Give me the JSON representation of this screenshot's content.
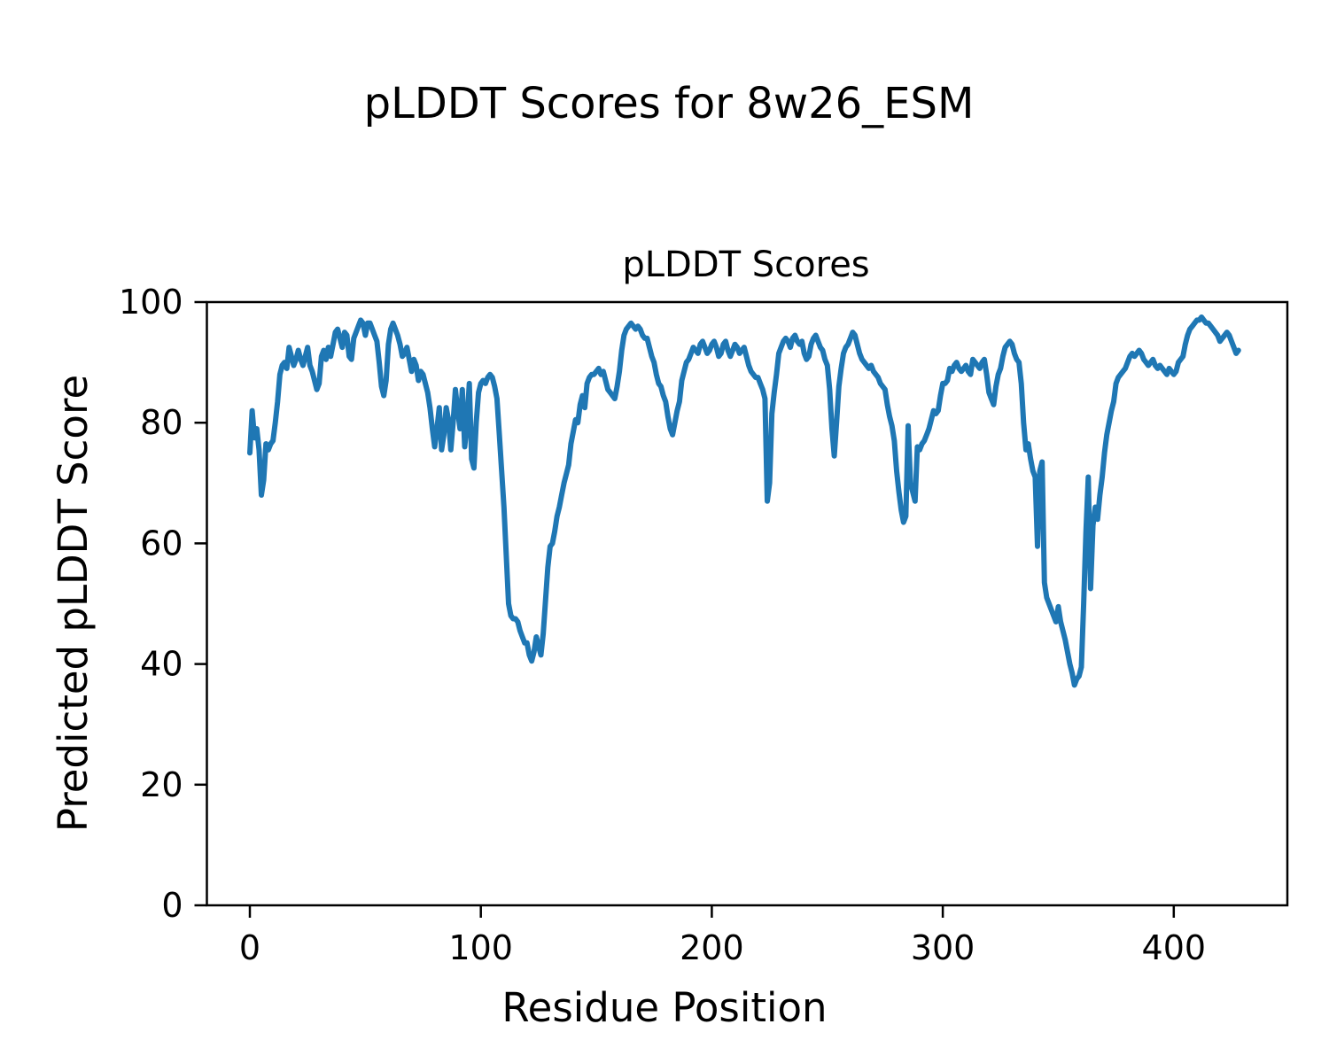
{
  "figure_title": "pLDDT Scores for 8w26_ESM",
  "chart_data": {
    "type": "line",
    "title": "pLDDT Scores",
    "xlabel": "Residue Position",
    "ylabel": "Predicted pLDDT Score",
    "x_ticks": [
      0,
      100,
      200,
      300,
      400
    ],
    "y_ticks": [
      0,
      20,
      40,
      60,
      80,
      100
    ],
    "ylim": [
      0,
      100
    ],
    "xlim": [
      -19,
      449
    ],
    "grid": false,
    "legend": null,
    "line_color": "#1f77b4",
    "axis_color": "#000000",
    "series": [
      {
        "name": "pLDDT",
        "x_start": 0,
        "x_step": 1,
        "values": [
          75,
          82,
          77.5,
          79,
          75.5,
          68,
          70.5,
          76.5,
          75.5,
          76.5,
          77,
          80,
          83.5,
          88,
          89.5,
          90,
          89,
          92.5,
          91,
          89.5,
          90.5,
          92,
          90.5,
          89.5,
          91,
          92.5,
          89.5,
          88.5,
          87,
          85.5,
          86.5,
          91,
          92,
          90.5,
          92.5,
          91,
          93,
          95,
          95.5,
          94,
          92.5,
          95,
          94.5,
          91,
          90.5,
          94,
          95,
          96,
          97,
          96.5,
          94.5,
          96.5,
          96.5,
          95.5,
          94.5,
          93.5,
          90,
          86,
          84.5,
          87,
          93,
          95.5,
          96.5,
          95.5,
          94.5,
          93,
          91,
          91.5,
          92.5,
          90.5,
          88.5,
          90.5,
          89.5,
          87,
          88.5,
          88,
          86.5,
          85,
          82.5,
          79,
          76,
          79,
          82.5,
          75.5,
          78,
          82.5,
          80.5,
          75.5,
          80,
          85.5,
          82,
          79,
          85.5,
          76,
          80,
          86.5,
          74,
          72.5,
          80,
          85,
          86.5,
          87,
          86.5,
          87.5,
          88,
          87.5,
          86,
          84,
          78,
          72,
          66,
          58,
          50,
          48,
          47.5,
          47.5,
          47,
          45.5,
          44.5,
          43.5,
          43.5,
          41.5,
          40.5,
          42,
          44.5,
          43,
          41.5,
          45,
          50.5,
          56,
          59.5,
          60,
          62,
          64.5,
          66,
          68,
          70,
          71.5,
          73,
          76.5,
          78.5,
          80.5,
          80,
          83,
          84.5,
          82.5,
          86.5,
          87.5,
          88,
          88,
          88.5,
          89,
          88,
          88.5,
          87,
          85.5,
          85,
          84.5,
          84,
          86,
          88.5,
          92,
          94.5,
          95.5,
          96,
          96.5,
          96,
          95.5,
          96,
          95.5,
          94.5,
          94,
          94,
          92.5,
          91,
          90,
          88,
          86.5,
          86,
          84.5,
          83.5,
          81,
          79,
          78,
          80,
          82,
          83.5,
          87,
          88.5,
          90,
          90.5,
          91.5,
          92.5,
          92,
          91.5,
          93,
          93.5,
          92.5,
          91.5,
          92,
          93,
          93.5,
          92.5,
          91,
          91.5,
          93,
          93.5,
          92,
          91,
          92,
          93,
          92.5,
          91.5,
          92,
          92.5,
          91,
          89.5,
          88.5,
          88,
          87.5,
          87.5,
          86.5,
          85.5,
          84,
          67,
          70,
          81.5,
          85,
          88,
          91.5,
          92.5,
          93.5,
          94,
          93.5,
          92.5,
          94,
          94.5,
          93.5,
          93,
          93.5,
          91.5,
          90.5,
          91,
          93,
          94,
          94.5,
          93.5,
          92.5,
          92,
          90.5,
          89.5,
          85.5,
          79,
          74.5,
          80,
          86,
          89,
          91.5,
          92.5,
          93,
          94,
          95,
          94.5,
          93,
          91.5,
          90.5,
          90,
          89.5,
          89,
          89.5,
          88.5,
          88,
          87.5,
          86.5,
          86,
          85.5,
          83,
          81,
          79.5,
          77,
          72,
          68.5,
          65.5,
          63.5,
          64.5,
          79.5,
          70,
          68.5,
          67,
          76,
          75.5,
          76.5,
          77,
          78,
          79,
          80.5,
          82,
          81.5,
          82,
          84.5,
          86.5,
          86.5,
          87,
          89,
          88.5,
          89.5,
          90,
          89,
          88.5,
          89,
          89.5,
          88.5,
          88,
          90.5,
          90,
          89.5,
          89,
          90,
          90.5,
          88,
          85,
          84,
          83,
          86,
          88,
          89,
          91,
          92.5,
          93,
          93.5,
          93,
          91.5,
          90.5,
          90,
          86.5,
          80,
          75.5,
          76.5,
          74,
          72,
          71,
          59.5,
          72,
          73.5,
          53.5,
          51,
          50,
          49,
          48,
          47,
          49.5,
          47,
          45.5,
          44,
          42,
          40,
          38.5,
          36.5,
          37.5,
          38,
          39.5,
          50,
          62,
          71,
          52.5,
          63,
          66,
          64,
          68,
          71,
          75,
          78,
          80,
          82,
          83.5,
          86.5,
          87.5,
          88,
          88.5,
          89,
          90,
          91,
          91.5,
          91,
          91.5,
          92,
          91.5,
          90.5,
          90,
          89.5,
          90,
          90.5,
          89.5,
          89,
          89.5,
          89,
          88.5,
          88,
          89,
          88.5,
          88,
          88.5,
          90,
          90.5,
          91,
          93,
          94.5,
          95.5,
          96,
          96.5,
          97,
          97,
          97.5,
          97,
          96.5,
          96.5,
          96,
          95.5,
          95,
          94.5,
          93.5,
          94,
          94.5,
          95,
          94.5,
          93.5,
          92.5,
          91.5,
          92
        ]
      }
    ]
  }
}
